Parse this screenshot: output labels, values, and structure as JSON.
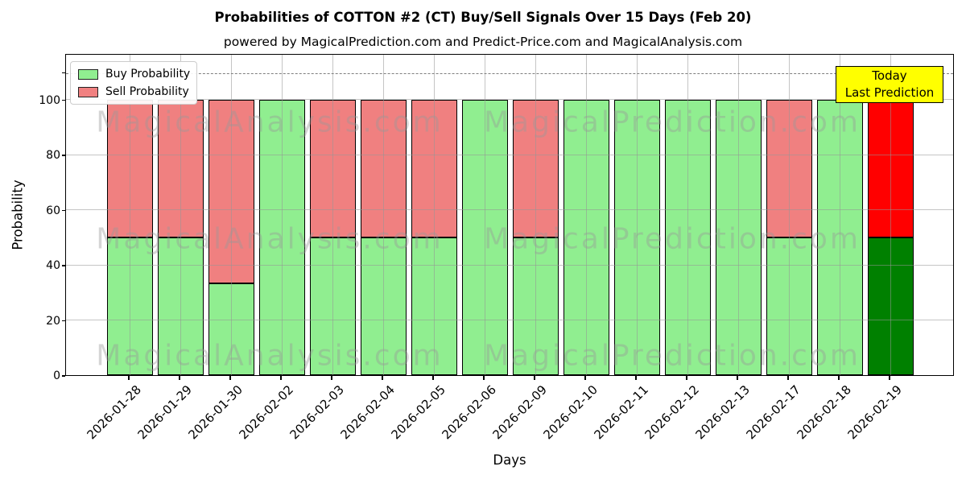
{
  "title": "Probabilities of COTTON #2 (CT) Buy/Sell Signals Over 15 Days (Feb 20)",
  "subtitle": "powered by MagicalPrediction.com and Predict-Price.com and MagicalAnalysis.com",
  "legend": {
    "buy_label": "Buy Probability",
    "sell_label": "Sell Probability"
  },
  "annotation": {
    "line1": "Today",
    "line2": "Last Prediction"
  },
  "watermarks": {
    "left": "MagicalAnalysis.com",
    "right": "MagicalPrediction.com"
  },
  "colors": {
    "buy": "#90EE90",
    "sell": "#F08080",
    "today_buy": "#008000",
    "today_sell": "#FF0000",
    "annotation_bg": "#FFFF00"
  },
  "chart_data": {
    "type": "bar",
    "stacked": true,
    "title": "Probabilities of COTTON #2 (CT) Buy/Sell Signals Over 15 Days (Feb 20)",
    "xlabel": "Days",
    "ylabel": "Probability",
    "categories": [
      "2026-01-28",
      "2026-01-29",
      "2026-01-30",
      "2026-02-02",
      "2026-02-03",
      "2026-02-04",
      "2026-02-05",
      "2026-02-06",
      "2026-02-09",
      "2026-02-10",
      "2026-02-11",
      "2026-02-12",
      "2026-02-13",
      "2026-02-17",
      "2026-02-18",
      "2026-02-19"
    ],
    "series": [
      {
        "name": "Buy Probability",
        "values": [
          50,
          50,
          33.33,
          100,
          50,
          50,
          50,
          100,
          50,
          100,
          100,
          100,
          100,
          50,
          100,
          50
        ]
      },
      {
        "name": "Sell Probability",
        "values": [
          50,
          50,
          66.67,
          0,
          50,
          50,
          50,
          0,
          50,
          0,
          0,
          0,
          0,
          50,
          0,
          50
        ]
      }
    ],
    "today_index": 15,
    "yticks": [
      0,
      20,
      40,
      60,
      80,
      100
    ],
    "ylim": [
      0,
      116.8
    ],
    "dashed_line_y": 110,
    "grid": true,
    "legend_position": "upper left"
  }
}
